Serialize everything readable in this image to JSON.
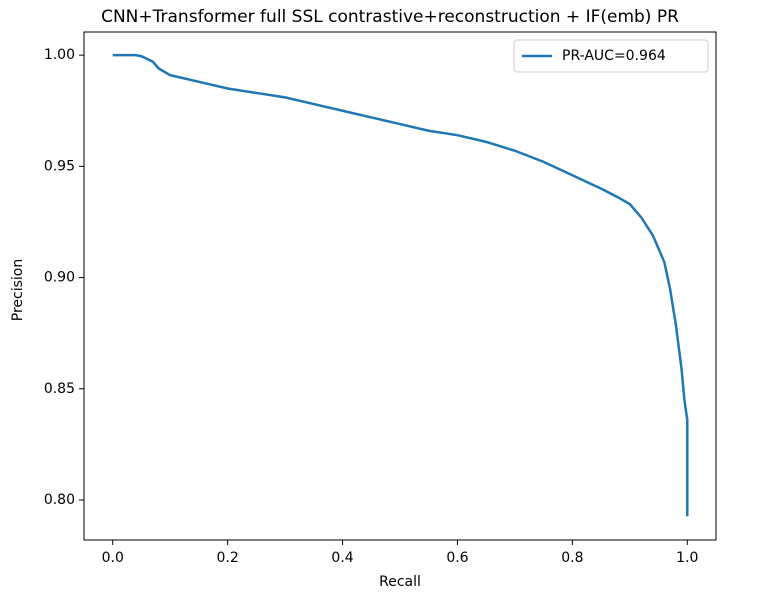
{
  "chart_data": {
    "type": "line",
    "title": "CNN+Transformer full SSL contrastive+reconstruction + IF(emb) PR",
    "x_label": "Recall",
    "y_label": "Precision",
    "series": [
      {
        "name": "PR-AUC=0.964",
        "color": "#1f77b4",
        "x": [
          0,
          0.04,
          0.05,
          0.07,
          0.08,
          0.1,
          0.15,
          0.2,
          0.25,
          0.3,
          0.35,
          0.4,
          0.45,
          0.5,
          0.55,
          0.6,
          0.65,
          0.7,
          0.75,
          0.8,
          0.85,
          0.88,
          0.9,
          0.92,
          0.94,
          0.96,
          0.97,
          0.98,
          0.99,
          0.995,
          1.0,
          1.0
        ],
        "values": [
          1.0,
          1.0,
          0.9995,
          0.997,
          0.994,
          0.991,
          0.988,
          0.985,
          0.983,
          0.981,
          0.978,
          0.975,
          0.972,
          0.969,
          0.966,
          0.964,
          0.961,
          0.957,
          0.952,
          0.946,
          0.94,
          0.936,
          0.933,
          0.927,
          0.919,
          0.907,
          0.895,
          0.879,
          0.859,
          0.845,
          0.836,
          0.7926
        ]
      }
    ],
    "xlim": [
      -0.05,
      1.05
    ],
    "xticks": [
      {
        "value": 0,
        "label": "0.0"
      },
      0.2,
      0.4,
      0.6,
      0.8,
      {
        "value": 1,
        "label": "1.0"
      }
    ],
    "ylim": [
      0.782,
      1.0104
    ],
    "yticks": [
      {
        "value": 0.8,
        "label": "0.80"
      },
      0.85,
      {
        "value": 0.9,
        "label": "0.90"
      },
      0.95,
      {
        "value": 1,
        "label": "1.00"
      }
    ],
    "legend": "upper right",
    "grid": false
  }
}
